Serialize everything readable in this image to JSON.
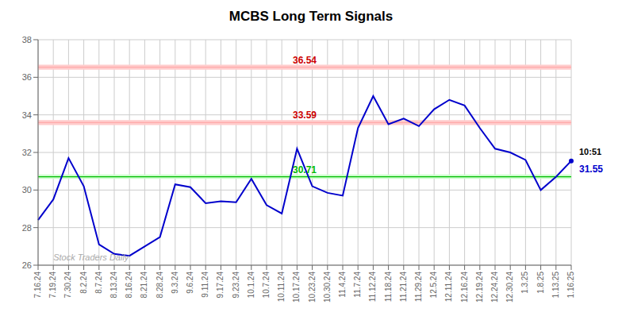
{
  "chart_data": {
    "type": "line",
    "title": "MCBS Long Term Signals",
    "categories": [
      "7.16.24",
      "7.19.24",
      "7.30.24",
      "8.2.24",
      "8.7.24",
      "8.13.24",
      "8.16.24",
      "8.21.24",
      "8.28.24",
      "9.3.24",
      "9.6.24",
      "9.11.24",
      "9.17.24",
      "9.23.24",
      "10.1.24",
      "10.7.24",
      "10.11.24",
      "10.17.24",
      "10.23.24",
      "10.30.24",
      "11.4.24",
      "11.7.24",
      "11.12.24",
      "11.18.24",
      "11.21.24",
      "11.29.24",
      "12.5.24",
      "12.11.24",
      "12.16.24",
      "12.19.24",
      "12.24.24",
      "12.30.24",
      "1.3.25",
      "1.8.25",
      "1.13.25",
      "1.16.25"
    ],
    "values": [
      28.4,
      29.5,
      31.7,
      30.2,
      27.1,
      26.6,
      26.5,
      27.0,
      27.5,
      30.3,
      30.15,
      29.3,
      29.4,
      29.35,
      30.6,
      29.2,
      28.75,
      32.2,
      30.2,
      29.85,
      29.7,
      33.3,
      35.0,
      33.5,
      33.8,
      33.4,
      34.3,
      34.8,
      34.5,
      33.3,
      32.2,
      32.0,
      31.6,
      30.0,
      30.7,
      31.55
    ],
    "color": "#0000cc",
    "ylim": [
      26,
      38
    ],
    "yticks": [
      26,
      28,
      30,
      32,
      34,
      36,
      38
    ],
    "grid": true,
    "reference_lines": [
      {
        "value": 30.71,
        "label": "30.71",
        "color": "#00bb00",
        "label_color": "#00bb00",
        "band_color": "#ccffcc",
        "band_half_width": 0.12
      },
      {
        "value": 33.59,
        "label": "33.59",
        "color": "#ffaaaa",
        "label_color": "#cc0000",
        "band_color": "#ffcccc",
        "band_half_width": 0.13
      },
      {
        "value": 36.54,
        "label": "36.54",
        "color": "#ffaaaa",
        "label_color": "#cc0000",
        "band_color": "#ffcccc",
        "band_half_width": 0.13
      }
    ],
    "annotations": [
      {
        "text": "10:51",
        "color": "#000000"
      },
      {
        "text": "31.55",
        "color": "#0000cc"
      }
    ],
    "watermark": {
      "text": "Stock Traders Daily",
      "color": "#aaaaaa"
    }
  }
}
